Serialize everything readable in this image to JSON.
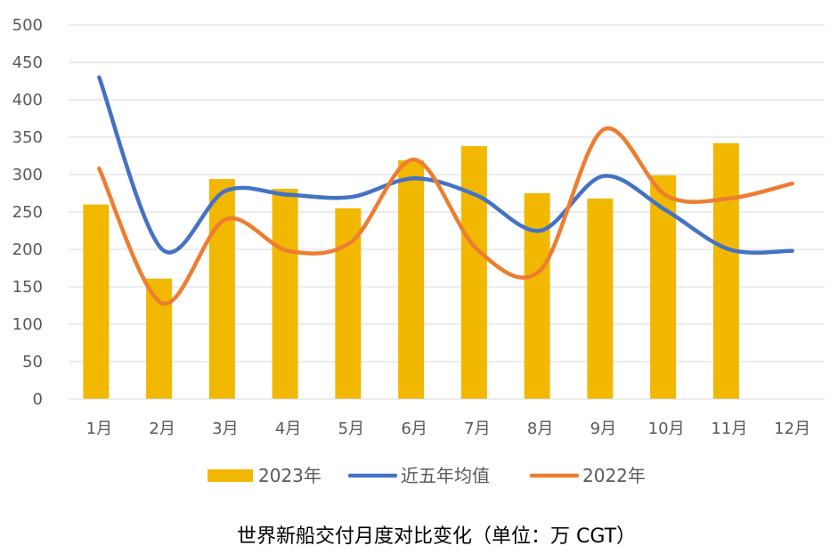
{
  "chart_data": {
    "type": "bar",
    "title": "世界新船交付月度对比变化（单位：万 CGT）",
    "xlabel": "",
    "ylabel": "",
    "categories": [
      "1月",
      "2月",
      "3月",
      "4月",
      "5月",
      "6月",
      "7月",
      "8月",
      "9月",
      "10月",
      "11月",
      "12月"
    ],
    "ylim": [
      0,
      500
    ],
    "yticks": [
      0,
      50,
      100,
      150,
      200,
      250,
      300,
      350,
      400,
      450,
      500
    ],
    "grid": true,
    "legend_position": "bottom",
    "series": [
      {
        "name": "2023年",
        "kind": "bar",
        "color": "#F2B800",
        "values": [
          260,
          161,
          294,
          281,
          255,
          319,
          338,
          275,
          268,
          299,
          342,
          null
        ]
      },
      {
        "name": "近五年均值",
        "kind": "line",
        "color": "#4472C4",
        "values": [
          430,
          200,
          278,
          273,
          270,
          295,
          272,
          225,
          298,
          252,
          200,
          198
        ]
      },
      {
        "name": "2022年",
        "kind": "line",
        "color": "#ED7D31",
        "values": [
          308,
          128,
          240,
          198,
          210,
          320,
          200,
          172,
          360,
          272,
          268,
          288
        ]
      }
    ]
  }
}
